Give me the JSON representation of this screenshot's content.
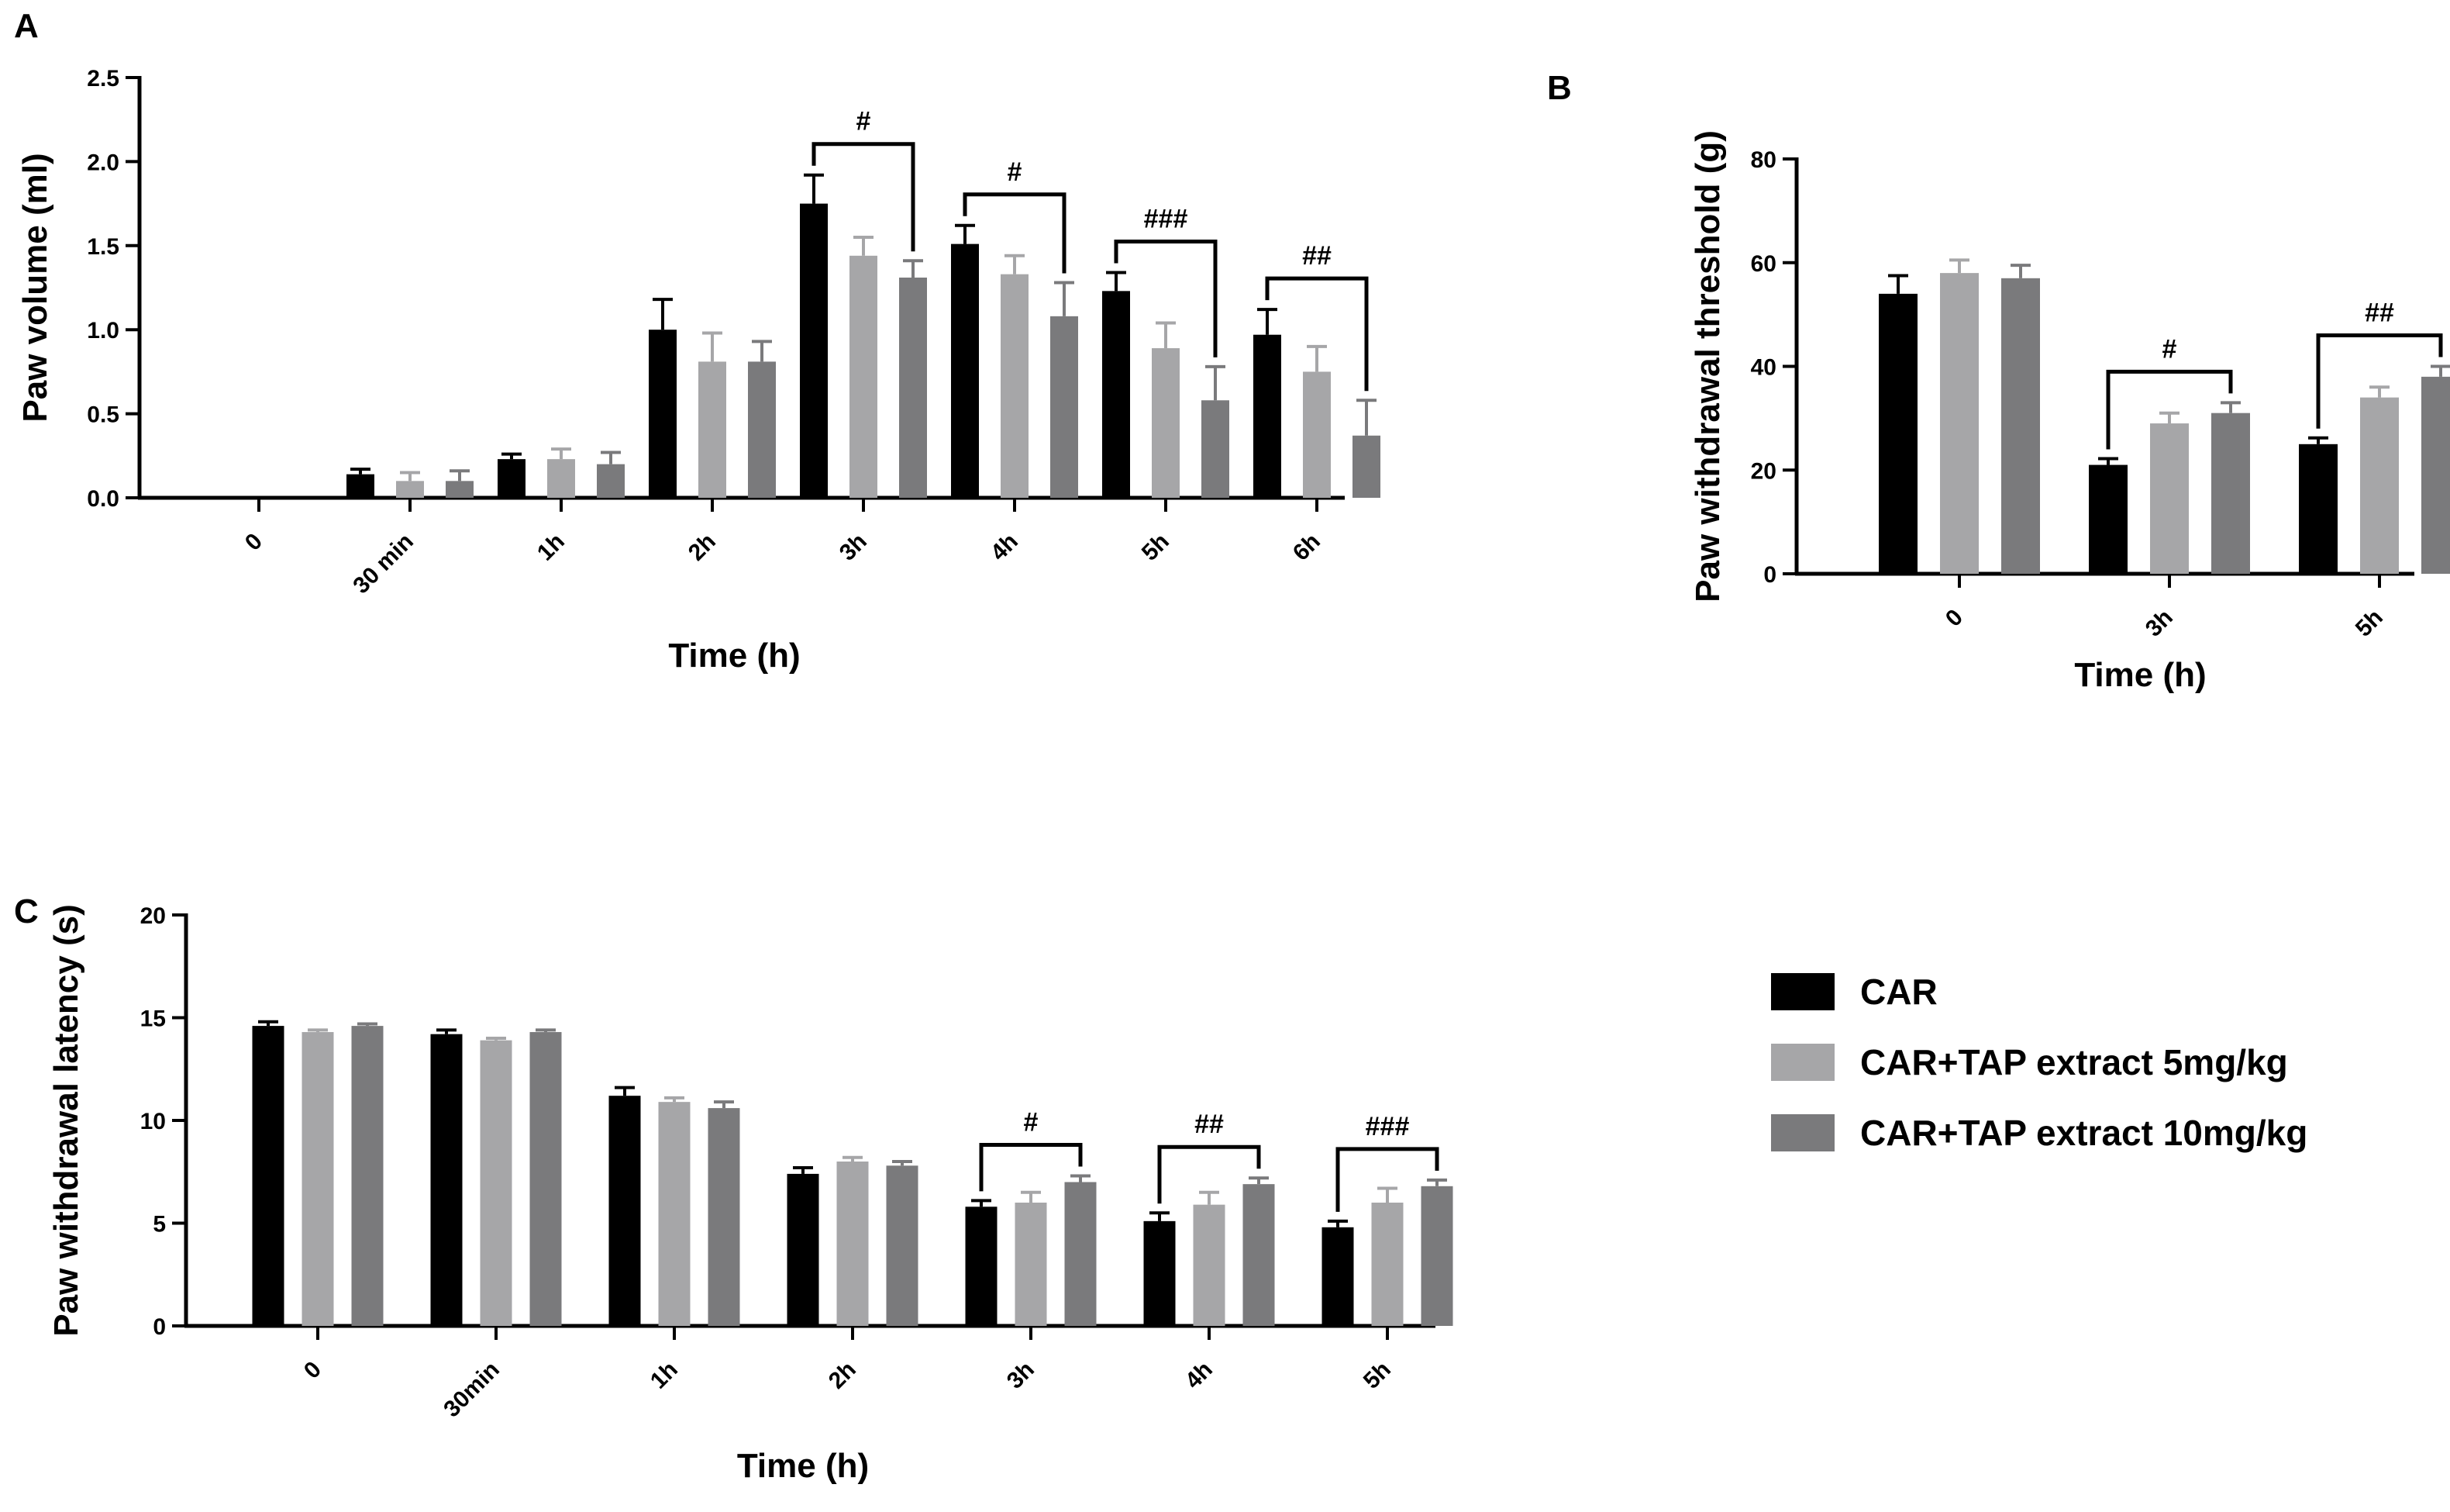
{
  "figure": {
    "legend": {
      "placement": "right",
      "entries": [
        {
          "label": "CAR",
          "color": "#000000"
        },
        {
          "label": "CAR+TAP extract 5mg/kg",
          "color": "#a6a6a8"
        },
        {
          "label": "CAR+TAP extract 10mg/kg",
          "color": "#7a7a7c"
        }
      ]
    }
  },
  "chart_data": [
    {
      "panel": "A",
      "type": "bar",
      "xlabel": "Time (h)",
      "ylabel": "Paw volume (ml)",
      "ylim": [
        0,
        2.5
      ],
      "yticks": [
        "0.0",
        "0.5",
        "1.0",
        "1.5",
        "2.0",
        "2.5"
      ],
      "categories": [
        "0",
        "30 min",
        "1h",
        "2h",
        "3h",
        "4h",
        "5h",
        "6h"
      ],
      "series": [
        {
          "name": "CAR",
          "color": "#000000",
          "values": [
            0,
            0.14,
            0.23,
            1.0,
            1.75,
            1.51,
            1.23,
            0.97
          ],
          "errors": [
            0,
            0.03,
            0.03,
            0.18,
            0.17,
            0.11,
            0.11,
            0.15
          ]
        },
        {
          "name": "CAR+TAP extract 5mg/kg",
          "color": "#a6a6a8",
          "values": [
            0,
            0.1,
            0.23,
            0.81,
            1.44,
            1.33,
            0.89,
            0.75
          ],
          "errors": [
            0,
            0.05,
            0.06,
            0.17,
            0.11,
            0.11,
            0.15,
            0.15
          ]
        },
        {
          "name": "CAR+TAP extract 10mg/kg",
          "color": "#7a7a7c",
          "values": [
            0,
            0.1,
            0.2,
            0.81,
            1.31,
            1.08,
            0.58,
            0.37
          ],
          "errors": [
            0,
            0.06,
            0.07,
            0.12,
            0.1,
            0.2,
            0.2,
            0.21
          ]
        }
      ],
      "annotations": [
        {
          "text": "#",
          "category_index": 4
        },
        {
          "text": "#",
          "category_index": 5
        },
        {
          "text": "###",
          "category_index": 6
        },
        {
          "text": "##",
          "category_index": 7
        }
      ]
    },
    {
      "panel": "B",
      "type": "bar",
      "xlabel": "Time (h)",
      "ylabel": "Paw withdrawal threshold (g)",
      "ylim": [
        0,
        80
      ],
      "yticks": [
        "0",
        "20",
        "40",
        "60",
        "80"
      ],
      "categories": [
        "0",
        "3h",
        "5h"
      ],
      "series": [
        {
          "name": "CAR",
          "color": "#000000",
          "values": [
            54,
            21,
            25
          ],
          "errors": [
            3.5,
            1.2,
            1.2
          ]
        },
        {
          "name": "CAR+TAP extract 5mg/kg",
          "color": "#a6a6a8",
          "values": [
            58,
            29,
            34
          ],
          "errors": [
            2.5,
            2.0,
            2.0
          ]
        },
        {
          "name": "CAR+TAP extract 10mg/kg",
          "color": "#7a7a7c",
          "values": [
            57,
            31,
            38
          ],
          "errors": [
            2.5,
            2.0,
            2.0
          ]
        }
      ],
      "annotations": [
        {
          "text": "#",
          "category_index": 1
        },
        {
          "text": "##",
          "category_index": 2
        }
      ]
    },
    {
      "panel": "C",
      "type": "bar",
      "xlabel": "Time (h)",
      "ylabel": "Paw withdrawal latency (s)",
      "ylim": [
        0,
        20
      ],
      "yticks": [
        "0",
        "5",
        "10",
        "15",
        "20"
      ],
      "categories": [
        "0",
        "30min",
        "1h",
        "2h",
        "3h",
        "4h",
        "5h"
      ],
      "series": [
        {
          "name": "CAR",
          "color": "#000000",
          "values": [
            14.6,
            14.2,
            11.2,
            7.4,
            5.8,
            5.1,
            4.8
          ],
          "errors": [
            0.2,
            0.2,
            0.4,
            0.3,
            0.3,
            0.4,
            0.3
          ]
        },
        {
          "name": "CAR+TAP extract 5mg/kg",
          "color": "#a6a6a8",
          "values": [
            14.3,
            13.9,
            10.9,
            8.0,
            6.0,
            5.9,
            6.0
          ],
          "errors": [
            0.1,
            0.1,
            0.2,
            0.2,
            0.5,
            0.6,
            0.7
          ]
        },
        {
          "name": "CAR+TAP extract 10mg/kg",
          "color": "#7a7a7c",
          "values": [
            14.6,
            14.3,
            10.6,
            7.8,
            7.0,
            6.9,
            6.8
          ],
          "errors": [
            0.1,
            0.1,
            0.3,
            0.2,
            0.3,
            0.3,
            0.3
          ]
        }
      ],
      "annotations": [
        {
          "text": "#",
          "category_index": 4
        },
        {
          "text": "##",
          "category_index": 5
        },
        {
          "text": "###",
          "category_index": 6
        }
      ]
    }
  ]
}
